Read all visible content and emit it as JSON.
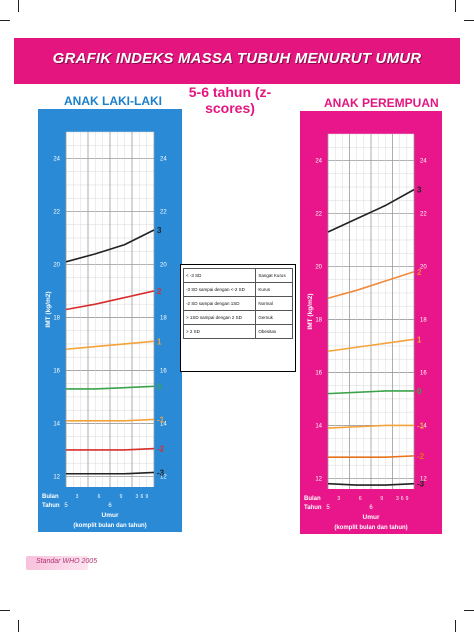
{
  "header": {
    "title": "GRAFIK INDEKS MASSA TUBUH MENURUT UMUR",
    "subtitle": "5-6 tahun (z-scores)"
  },
  "footer": {
    "source": "Standar WHO 2005"
  },
  "legend": {
    "rows": [
      {
        "range": "< -3 SD",
        "status": "Sangat Kurus"
      },
      {
        "range": "-3 SD sampai dengan <-2 SD",
        "status": "Kurus"
      },
      {
        "range": "-2 SD sampai dengan 1SD",
        "status": "Normal"
      },
      {
        "range": "> 1SD sampai dengan 2 SD",
        "status": "Gemuk"
      },
      {
        "range": "> 2 SD",
        "status": "Obesitas"
      }
    ]
  },
  "colors": {
    "banner": "#e5157f",
    "boys_panel": "#2a8ad6",
    "girls_panel": "#e8168a"
  },
  "chart_data": [
    {
      "type": "line",
      "title": "ANAK LAKI-LAKI",
      "ylabel": "IMT (kg/m2)",
      "xlabel": "Umur",
      "xlabel_sub": "(komplit bulan dan tahun)",
      "xaxis_row_labels": [
        "Bulan",
        "Tahun"
      ],
      "month_ticks": [
        "3",
        "6",
        "9",
        "3",
        "6",
        "9"
      ],
      "year_ticks": [
        "5",
        "6"
      ],
      "x_range_months": [
        60,
        72
      ],
      "ylim": [
        11.6,
        25
      ],
      "y_ticks": [
        "12",
        "14",
        "16",
        "18",
        "20",
        "22",
        "24"
      ],
      "grid": true,
      "series": [
        {
          "name": "3",
          "color": "#222222",
          "x": [
            60,
            64,
            68,
            72
          ],
          "y": [
            20.1,
            20.4,
            20.75,
            21.3
          ]
        },
        {
          "name": "2",
          "color": "#d82d2d",
          "x": [
            60,
            64,
            68,
            72
          ],
          "y": [
            18.3,
            18.5,
            18.75,
            19.0
          ]
        },
        {
          "name": "1",
          "color": "#f4a23a",
          "x": [
            60,
            64,
            68,
            72
          ],
          "y": [
            16.8,
            16.9,
            17.0,
            17.1
          ]
        },
        {
          "name": "0",
          "color": "#3aa34a",
          "x": [
            60,
            64,
            68,
            72
          ],
          "y": [
            15.3,
            15.3,
            15.35,
            15.4
          ]
        },
        {
          "name": "-1",
          "color": "#f4a23a",
          "x": [
            60,
            64,
            68,
            72
          ],
          "y": [
            14.1,
            14.1,
            14.1,
            14.15
          ]
        },
        {
          "name": "-2",
          "color": "#d82d2d",
          "x": [
            60,
            64,
            68,
            72
          ],
          "y": [
            13.0,
            13.0,
            13.0,
            13.05
          ]
        },
        {
          "name": "-3",
          "color": "#222222",
          "x": [
            60,
            64,
            68,
            72
          ],
          "y": [
            12.1,
            12.1,
            12.1,
            12.15
          ]
        }
      ]
    },
    {
      "type": "line",
      "title": "ANAK PEREMPUAN",
      "ylabel": "IMT (kg/m2)",
      "xlabel": "Umur",
      "xlabel_sub": "(komplit bulan dan tahun)",
      "xaxis_row_labels": [
        "Bulan",
        "Tahun"
      ],
      "month_ticks": [
        "3",
        "6",
        "9",
        "3",
        "6",
        "9"
      ],
      "year_ticks": [
        "5",
        "6"
      ],
      "x_range_months": [
        60,
        72
      ],
      "ylim": [
        11.6,
        25
      ],
      "y_ticks": [
        "12",
        "14",
        "16",
        "18",
        "20",
        "22",
        "24"
      ],
      "grid": true,
      "series": [
        {
          "name": "3",
          "color": "#222222",
          "x": [
            60,
            64,
            68,
            72
          ],
          "y": [
            21.3,
            21.8,
            22.3,
            22.9
          ]
        },
        {
          "name": "2",
          "color": "#f08a3c",
          "x": [
            60,
            64,
            68,
            72
          ],
          "y": [
            18.8,
            19.1,
            19.45,
            19.8
          ]
        },
        {
          "name": "1",
          "color": "#f4a23a",
          "x": [
            60,
            64,
            68,
            72
          ],
          "y": [
            16.8,
            16.95,
            17.1,
            17.25
          ]
        },
        {
          "name": "0",
          "color": "#3aa34a",
          "x": [
            60,
            64,
            68,
            72
          ],
          "y": [
            15.2,
            15.25,
            15.3,
            15.3
          ]
        },
        {
          "name": "-1",
          "color": "#f4a23a",
          "x": [
            60,
            64,
            68,
            72
          ],
          "y": [
            13.9,
            13.95,
            14.0,
            14.0
          ]
        },
        {
          "name": "-2",
          "color": "#e8731c",
          "x": [
            60,
            64,
            68,
            72
          ],
          "y": [
            12.8,
            12.8,
            12.8,
            12.85
          ]
        },
        {
          "name": "-3",
          "color": "#222222",
          "x": [
            60,
            64,
            68,
            72
          ],
          "y": [
            11.8,
            11.75,
            11.75,
            11.8
          ]
        }
      ]
    }
  ]
}
